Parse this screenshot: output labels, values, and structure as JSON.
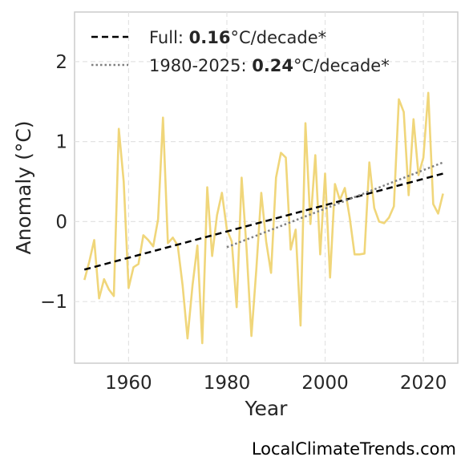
{
  "chart_data": {
    "type": "line",
    "title": "",
    "xlabel": "Year",
    "ylabel": "Anomaly (°C)",
    "xlim": [
      1949,
      2027
    ],
    "ylim": [
      -1.77,
      2.62
    ],
    "xticks": [
      1960,
      1980,
      2000,
      2020
    ],
    "yticks": [
      -1,
      0,
      1,
      2
    ],
    "ytick_labels": [
      "−1",
      "0",
      "1",
      "2"
    ],
    "grid": true,
    "legend_position": "top-left",
    "legend": {
      "full": {
        "prefix": "Full: ",
        "value": "0.16",
        "suffix": "°C/decade*"
      },
      "recent": {
        "prefix": "1980-2025: ",
        "value": "0.24",
        "suffix": "°C/decade*"
      }
    },
    "series": {
      "x": [
        1951,
        1952,
        1953,
        1954,
        1955,
        1956,
        1957,
        1958,
        1959,
        1960,
        1961,
        1962,
        1963,
        1964,
        1965,
        1966,
        1967,
        1968,
        1969,
        1970,
        1971,
        1972,
        1973,
        1974,
        1975,
        1976,
        1977,
        1978,
        1979,
        1980,
        1981,
        1982,
        1983,
        1984,
        1985,
        1986,
        1987,
        1988,
        1989,
        1990,
        1991,
        1992,
        1993,
        1994,
        1995,
        1996,
        1997,
        1998,
        1999,
        2000,
        2001,
        2002,
        2003,
        2004,
        2005,
        2006,
        2007,
        2008,
        2009,
        2010,
        2011,
        2012,
        2013,
        2014,
        2015,
        2016,
        2017,
        2018,
        2019,
        2020,
        2021,
        2022,
        2023,
        2024
      ],
      "y": [
        -0.73,
        -0.5,
        -0.23,
        -0.96,
        -0.72,
        -0.85,
        -0.93,
        1.16,
        0.5,
        -0.83,
        -0.57,
        -0.53,
        -0.17,
        -0.23,
        -0.31,
        0.03,
        1.3,
        -0.27,
        -0.2,
        -0.3,
        -0.8,
        -1.46,
        -0.8,
        -0.3,
        -1.52,
        0.43,
        -0.43,
        0.08,
        0.36,
        -0.1,
        -0.25,
        -1.07,
        0.55,
        -0.33,
        -1.43,
        -0.6,
        0.36,
        -0.25,
        -0.64,
        0.55,
        0.86,
        0.8,
        -0.35,
        -0.1,
        -1.3,
        1.23,
        -0.03,
        0.83,
        -0.41,
        0.6,
        -0.7,
        0.47,
        0.27,
        0.42,
        0.05,
        -0.41,
        -0.41,
        -0.4,
        0.74,
        0.17,
        0.0,
        -0.02,
        0.05,
        0.19,
        1.53,
        1.37,
        0.33,
        1.28,
        0.58,
        0.8,
        1.61,
        0.22,
        0.1,
        0.35
      ],
      "color": "#f0d67a"
    },
    "trend_full": {
      "x": [
        1951,
        2024
      ],
      "y": [
        -0.6,
        0.6
      ],
      "color": "#000000"
    },
    "trend_recent": {
      "x": [
        1980,
        2024
      ],
      "y": [
        -0.32,
        0.74
      ],
      "color": "#808080"
    }
  },
  "watermark": "LocalClimateTrends.com"
}
